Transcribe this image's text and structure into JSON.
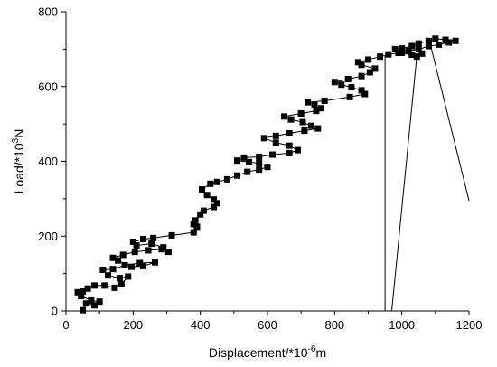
{
  "chart_data": {
    "type": "line",
    "xlabel": {
      "main": "Displacement/*10",
      "sup": "-6",
      "unit": "m"
    },
    "ylabel": {
      "main": "Load/*10",
      "sup": "3",
      "unit": "N"
    },
    "xlim": [
      0,
      1200
    ],
    "ylim": [
      0,
      800
    ],
    "x_ticks": [
      0,
      200,
      400,
      600,
      800,
      1000,
      1200
    ],
    "y_ticks": [
      0,
      200,
      400,
      600,
      800
    ],
    "grid": false,
    "series": [
      {
        "marker": "square",
        "color": "#000000",
        "points": [
          [
            50,
            2
          ],
          [
            60,
            20
          ],
          [
            85,
            15
          ],
          [
            100,
            25
          ],
          [
            75,
            28
          ],
          [
            45,
            40
          ],
          [
            35,
            50
          ],
          [
            50,
            52
          ],
          [
            65,
            60
          ],
          [
            85,
            68
          ],
          [
            115,
            68
          ],
          [
            145,
            62
          ],
          [
            165,
            72
          ],
          [
            185,
            92
          ],
          [
            160,
            88
          ],
          [
            125,
            95
          ],
          [
            110,
            110
          ],
          [
            140,
            112
          ],
          [
            175,
            122
          ],
          [
            220,
            128
          ],
          [
            265,
            130
          ],
          [
            230,
            120
          ],
          [
            195,
            118
          ],
          [
            155,
            135
          ],
          [
            140,
            142
          ],
          [
            170,
            150
          ],
          [
            205,
            158
          ],
          [
            245,
            162
          ],
          [
            285,
            165
          ],
          [
            305,
            158
          ],
          [
            290,
            170
          ],
          [
            255,
            180
          ],
          [
            210,
            175
          ],
          [
            200,
            185
          ],
          [
            230,
            192
          ],
          [
            260,
            195
          ],
          [
            315,
            202
          ],
          [
            380,
            210
          ],
          [
            390,
            225
          ],
          [
            380,
            232
          ],
          [
            385,
            242
          ],
          [
            400,
            258
          ],
          [
            410,
            268
          ],
          [
            440,
            278
          ],
          [
            450,
            288
          ],
          [
            440,
            298
          ],
          [
            420,
            310
          ],
          [
            405,
            325
          ],
          [
            430,
            340
          ],
          [
            450,
            345
          ],
          [
            480,
            352
          ],
          [
            510,
            362
          ],
          [
            540,
            372
          ],
          [
            575,
            378
          ],
          [
            600,
            385
          ],
          [
            575,
            395
          ],
          [
            545,
            398
          ],
          [
            510,
            402
          ],
          [
            530,
            410
          ],
          [
            575,
            412
          ],
          [
            615,
            418
          ],
          [
            665,
            422
          ],
          [
            690,
            430
          ],
          [
            665,
            442
          ],
          [
            625,
            450
          ],
          [
            590,
            462
          ],
          [
            625,
            468
          ],
          [
            665,
            475
          ],
          [
            710,
            482
          ],
          [
            750,
            488
          ],
          [
            730,
            495
          ],
          [
            705,
            505
          ],
          [
            670,
            512
          ],
          [
            650,
            520
          ],
          [
            700,
            528
          ],
          [
            745,
            535
          ],
          [
            760,
            542
          ],
          [
            740,
            550
          ],
          [
            720,
            558
          ],
          [
            770,
            562
          ],
          [
            845,
            572
          ],
          [
            890,
            580
          ],
          [
            880,
            590
          ],
          [
            850,
            598
          ],
          [
            820,
            605
          ],
          [
            800,
            612
          ],
          [
            840,
            620
          ],
          [
            880,
            628
          ],
          [
            905,
            638
          ],
          [
            920,
            648
          ],
          [
            880,
            658
          ],
          [
            870,
            665
          ],
          [
            900,
            672
          ],
          [
            935,
            680
          ],
          [
            960,
            686
          ],
          [
            990,
            690
          ],
          [
            1020,
            695
          ],
          [
            1050,
            700
          ],
          [
            1080,
            708
          ],
          [
            1110,
            712
          ],
          [
            1140,
            718
          ],
          [
            1160,
            722
          ],
          [
            1130,
            725
          ],
          [
            1100,
            728
          ],
          [
            1080,
            722
          ],
          [
            1050,
            715
          ],
          [
            1030,
            708
          ],
          [
            1000,
            702
          ],
          [
            980,
            700
          ],
          [
            1000,
            690
          ],
          [
            1030,
            685
          ],
          [
            1045,
            680
          ],
          [
            1060,
            688
          ]
        ]
      },
      {
        "marker": "none",
        "color": "#000000",
        "points": [
          [
            950,
            0
          ],
          [
            950,
            682
          ]
        ]
      },
      {
        "marker": "none",
        "color": "#000000",
        "points": [
          [
            970,
            0
          ],
          [
            1045,
            685
          ]
        ]
      },
      {
        "marker": "none",
        "color": "#000000",
        "points": [
          [
            1085,
            712
          ],
          [
            1200,
            295
          ]
        ]
      }
    ]
  }
}
